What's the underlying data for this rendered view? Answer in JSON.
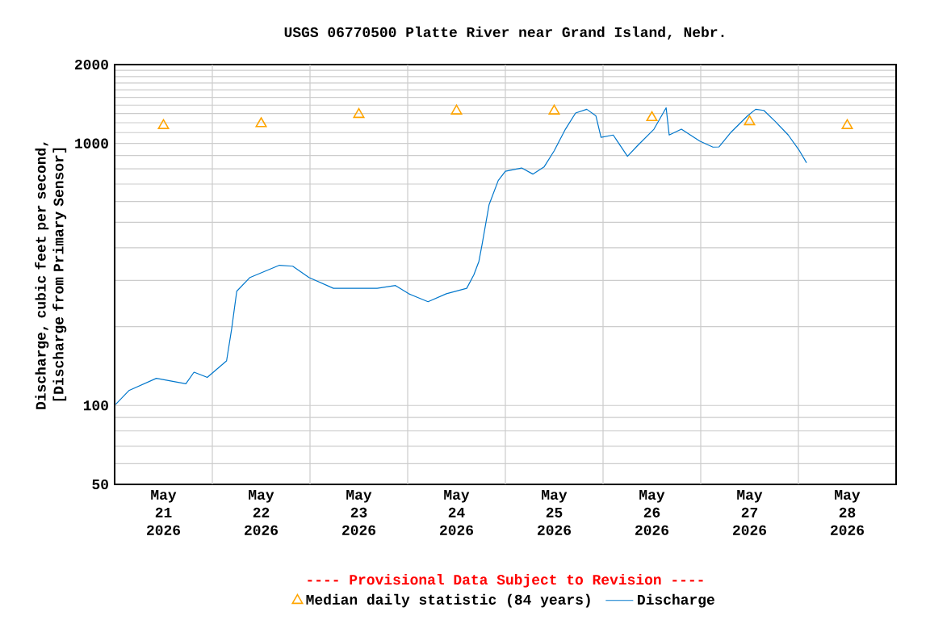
{
  "chart_data": {
    "type": "line",
    "title": "USGS 06770500 Platte River near Grand Island, Nebr.",
    "ylabel": "Discharge, cubic feet per second, [Discharge from Primary Sensor]",
    "annotations": [
      "---- Provisional Data Subject to Revision ----"
    ],
    "log": "y",
    "grid": true,
    "legend": "bottom",
    "xlim": [
      "2026-05-21T00:00",
      "2026-05-29T00:00"
    ],
    "xticks": [
      {
        "value": "2026-05-21T12:00",
        "label": "May 21 2026"
      },
      {
        "value": "2026-05-22T12:00",
        "label": "May 22 2026"
      },
      {
        "value": "2026-05-23T12:00",
        "label": "May 23 2026"
      },
      {
        "value": "2026-05-24T12:00",
        "label": "May 24 2026"
      },
      {
        "value": "2026-05-25T12:00",
        "label": "May 25 2026"
      },
      {
        "value": "2026-05-26T12:00",
        "label": "May 26 2026"
      },
      {
        "value": "2026-05-27T12:00",
        "label": "May 27 2026"
      },
      {
        "value": "2026-05-28T12:00",
        "label": "May 28 2026"
      },
      {
        "value": "2026-05-22T00:00",
        "label": null
      },
      {
        "value": "2026-05-23T00:00",
        "label": null
      },
      {
        "value": "2026-05-24T00:00",
        "label": null
      },
      {
        "value": "2026-05-25T00:00",
        "label": null
      },
      {
        "value": "2026-05-26T00:00",
        "label": null
      },
      {
        "value": "2026-05-27T00:00",
        "label": null
      },
      {
        "value": "2026-05-28T00:00",
        "label": null
      }
    ],
    "ylim": [
      50,
      2000
    ],
    "yticks": [
      50,
      100,
      1000,
      2000,
      {
        "value": 60,
        "label": null
      },
      {
        "value": 70,
        "label": null
      },
      {
        "value": 80,
        "label": null
      },
      {
        "value": 90,
        "label": null
      },
      {
        "value": 200,
        "label": null
      },
      {
        "value": 300,
        "label": null
      },
      {
        "value": 400,
        "label": null
      },
      {
        "value": 500,
        "label": null
      },
      {
        "value": 600,
        "label": null
      },
      {
        "value": 700,
        "label": null
      },
      {
        "value": 800,
        "label": null
      },
      {
        "value": 900,
        "label": null
      },
      {
        "value": 1100,
        "label": null
      },
      {
        "value": 1200,
        "label": null
      },
      {
        "value": 1300,
        "label": null
      },
      {
        "value": 1400,
        "label": null
      },
      {
        "value": 1500,
        "label": null
      },
      {
        "value": 1600,
        "label": null
      },
      {
        "value": 1700,
        "label": null
      },
      {
        "value": 1800,
        "label": null
      },
      {
        "value": 1900,
        "label": null
      }
    ],
    "series": [
      {
        "name": "Median daily statistic (84 years)",
        "type": "scatter",
        "marker": "triangle",
        "color": "#ffa500",
        "x": [
          "2026-05-21T12:00",
          "2026-05-22T12:00",
          "2026-05-23T12:00",
          "2026-05-24T12:00",
          "2026-05-25T12:00",
          "2026-05-26T12:00",
          "2026-05-27T12:00",
          "2026-05-28T12:00"
        ],
        "values": [
          1170,
          1190,
          1290,
          1330,
          1330,
          1255,
          1210,
          1170
        ]
      },
      {
        "name": "Discharge",
        "marker": "none",
        "color": "#0077cc",
        "x": [
          "2026-05-21T00:15",
          "2026-05-21T03:30",
          "2026-05-21T10:15",
          "2026-05-21T17:30",
          "2026-05-21T19:30",
          "2026-05-21T22:45",
          "2026-05-22T03:30",
          "2026-05-22T04:45",
          "2026-05-22T06:00",
          "2026-05-22T09:15",
          "2026-05-22T16:30",
          "2026-05-22T19:45",
          "2026-05-22T23:45",
          "2026-05-23T05:45",
          "2026-05-23T16:30",
          "2026-05-23T21:00",
          "2026-05-24T00:15",
          "2026-05-24T05:00",
          "2026-05-24T09:30",
          "2026-05-24T14:30",
          "2026-05-24T16:15",
          "2026-05-24T17:30",
          "2026-05-24T18:15",
          "2026-05-24T20:00",
          "2026-05-24T22:15",
          "2026-05-25T00:00",
          "2026-05-25T04:00",
          "2026-05-25T06:45",
          "2026-05-25T09:30",
          "2026-05-25T12:00",
          "2026-05-25T14:45",
          "2026-05-25T17:15",
          "2026-05-25T20:00",
          "2026-05-25T22:15",
          "2026-05-25T23:30",
          "2026-05-26T02:30",
          "2026-05-26T06:00",
          "2026-05-26T08:30",
          "2026-05-26T12:30",
          "2026-05-26T15:30",
          "2026-05-26T16:15",
          "2026-05-26T19:15",
          "2026-05-26T23:45",
          "2026-05-27T03:00",
          "2026-05-27T04:30",
          "2026-05-27T07:30",
          "2026-05-27T11:30",
          "2026-05-27T13:30",
          "2026-05-27T15:30",
          "2026-05-27T18:15",
          "2026-05-27T21:30",
          "2026-05-28T00:15",
          "2026-05-28T02:00"
        ],
        "values": [
          101,
          114,
          127,
          121,
          134,
          128,
          148,
          196,
          273,
          308,
          343,
          340,
          308,
          280,
          280,
          287,
          267,
          249,
          267,
          280,
          315,
          355,
          409,
          584,
          722,
          783,
          806,
          764,
          813,
          938,
          1133,
          1306,
          1350,
          1274,
          1055,
          1077,
          893,
          982,
          1133,
          1368,
          1077,
          1133,
          1021,
          968,
          970,
          1106,
          1274,
          1350,
          1337,
          1216,
          1077,
          938,
          844
        ]
      }
    ]
  }
}
